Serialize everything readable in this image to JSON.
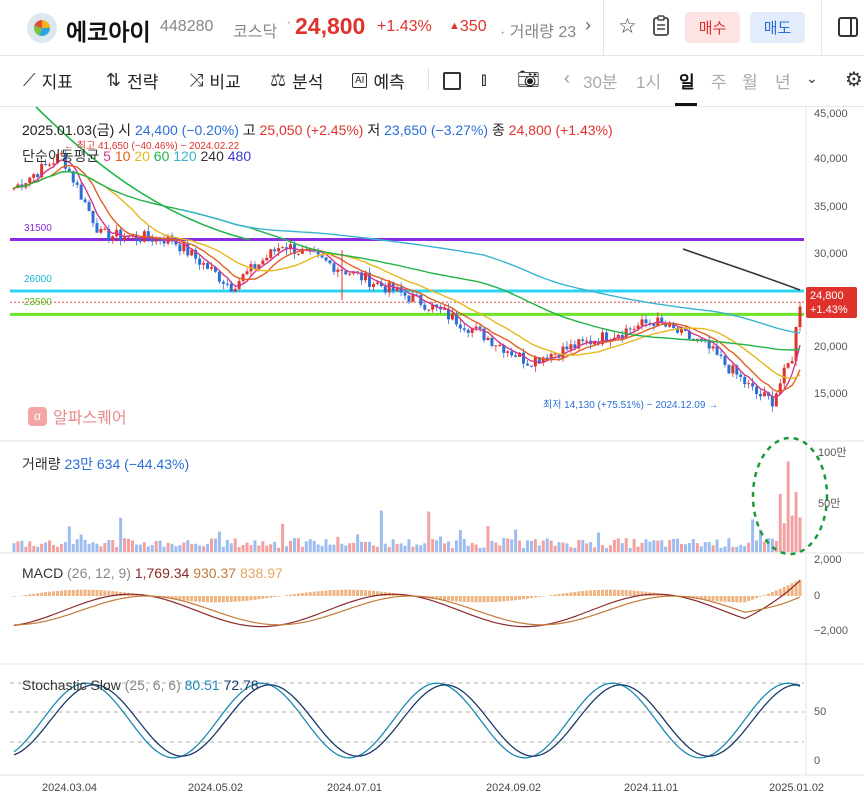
{
  "header": {
    "name": "에코아이",
    "code": "448280",
    "market": "코스닥",
    "separator": "·",
    "price": "24,800",
    "change_pct": "+1.43%",
    "change_arrow": "▲",
    "change_abs": "350",
    "volume_label": "· 거래량 23",
    "scroll_arrow": "›",
    "buy_label": "매수",
    "sell_label": "매도"
  },
  "toolbar": {
    "indicator_label": "지표",
    "strategy_label": "전략",
    "compare_label": "비교",
    "analysis_label": "분석",
    "predict_label": "예측",
    "timeframes": [
      "30분",
      "1시",
      "일",
      "주",
      "월",
      "년"
    ],
    "active_timeframe": "일",
    "tf_left_arrow": "‹",
    "tf_chevron": "⌄"
  },
  "info": {
    "date": "2025.01.03(금)",
    "open_label": "시",
    "open": "24,400",
    "open_pct": "(−0.20%)",
    "high_label": "고",
    "high": "25,050",
    "high_pct": "(+2.45%)",
    "low_label": "저",
    "low": "23,650",
    "low_pct": "(−3.27%)",
    "close_label": "종",
    "close": "24,800",
    "close_pct": "(+1.43%)"
  },
  "ma": {
    "label": "단순이동평균",
    "periods": [
      "5",
      "10",
      "20",
      "60",
      "120",
      "240",
      "480"
    ],
    "colors": [
      "#d13a8a",
      "#e0601e",
      "#e6b820",
      "#23b34a",
      "#3ab4d0",
      "#333333",
      "#3a3ad0"
    ]
  },
  "notes": {
    "high_note": "← 최고 41,650 (−40.46%) − 2024.02.22",
    "low_note": "최저 14,130 (+75.51%) − 2024.12.09 →"
  },
  "hlines": [
    {
      "label": "31500",
      "value": 31500,
      "color": "#8a2be2"
    },
    {
      "label": "26000",
      "value": 26000,
      "color": "#2ed3f0"
    },
    {
      "label": "23500",
      "value": 23500,
      "color": "#6ee32a"
    }
  ],
  "brand": {
    "label": "알파스퀘어",
    "icon": "α"
  },
  "price_tag": {
    "price": "24,800",
    "pct": "+1.43%"
  },
  "price_axis": [
    "45,000",
    "40,000",
    "35,000",
    "30,000",
    "25,000",
    "20,000",
    "15,000"
  ],
  "volume": {
    "label": "거래량",
    "value": "23만 634 (−44.43%)",
    "axis": [
      "100만",
      "50만"
    ]
  },
  "macd": {
    "label": "MACD",
    "params": "(26, 12, 9)",
    "v1": "1,769.34",
    "v2": "930.37",
    "v3": "838.97",
    "axis": [
      "2,000",
      "0",
      "−2,000"
    ]
  },
  "stochastic": {
    "label": "Stochastic Slow",
    "params": "(25, 6, 6)",
    "k": "80.51",
    "d": "72.78",
    "axis": [
      "50",
      "0"
    ]
  },
  "dates": [
    "2024.03.04",
    "2024.05.02",
    "2024.07.01",
    "2024.09.02",
    "2024.11.01",
    "2025.01.02"
  ],
  "colors": {
    "up": "#e0322d",
    "down": "#2b6fd6",
    "annotation": "#1a9a3a"
  },
  "chart_data": {
    "type": "line",
    "title": "",
    "x": [
      "2024.03.04",
      "2024.05.02",
      "2024.07.01",
      "2024.09.02",
      "2024.11.01",
      "2025.01.02"
    ],
    "series": [
      {
        "values": [
          31500,
          29000,
          27000,
          21000,
          19000,
          24800
        ]
      }
    ],
    "ylim": [
      12000,
      46000
    ]
  }
}
